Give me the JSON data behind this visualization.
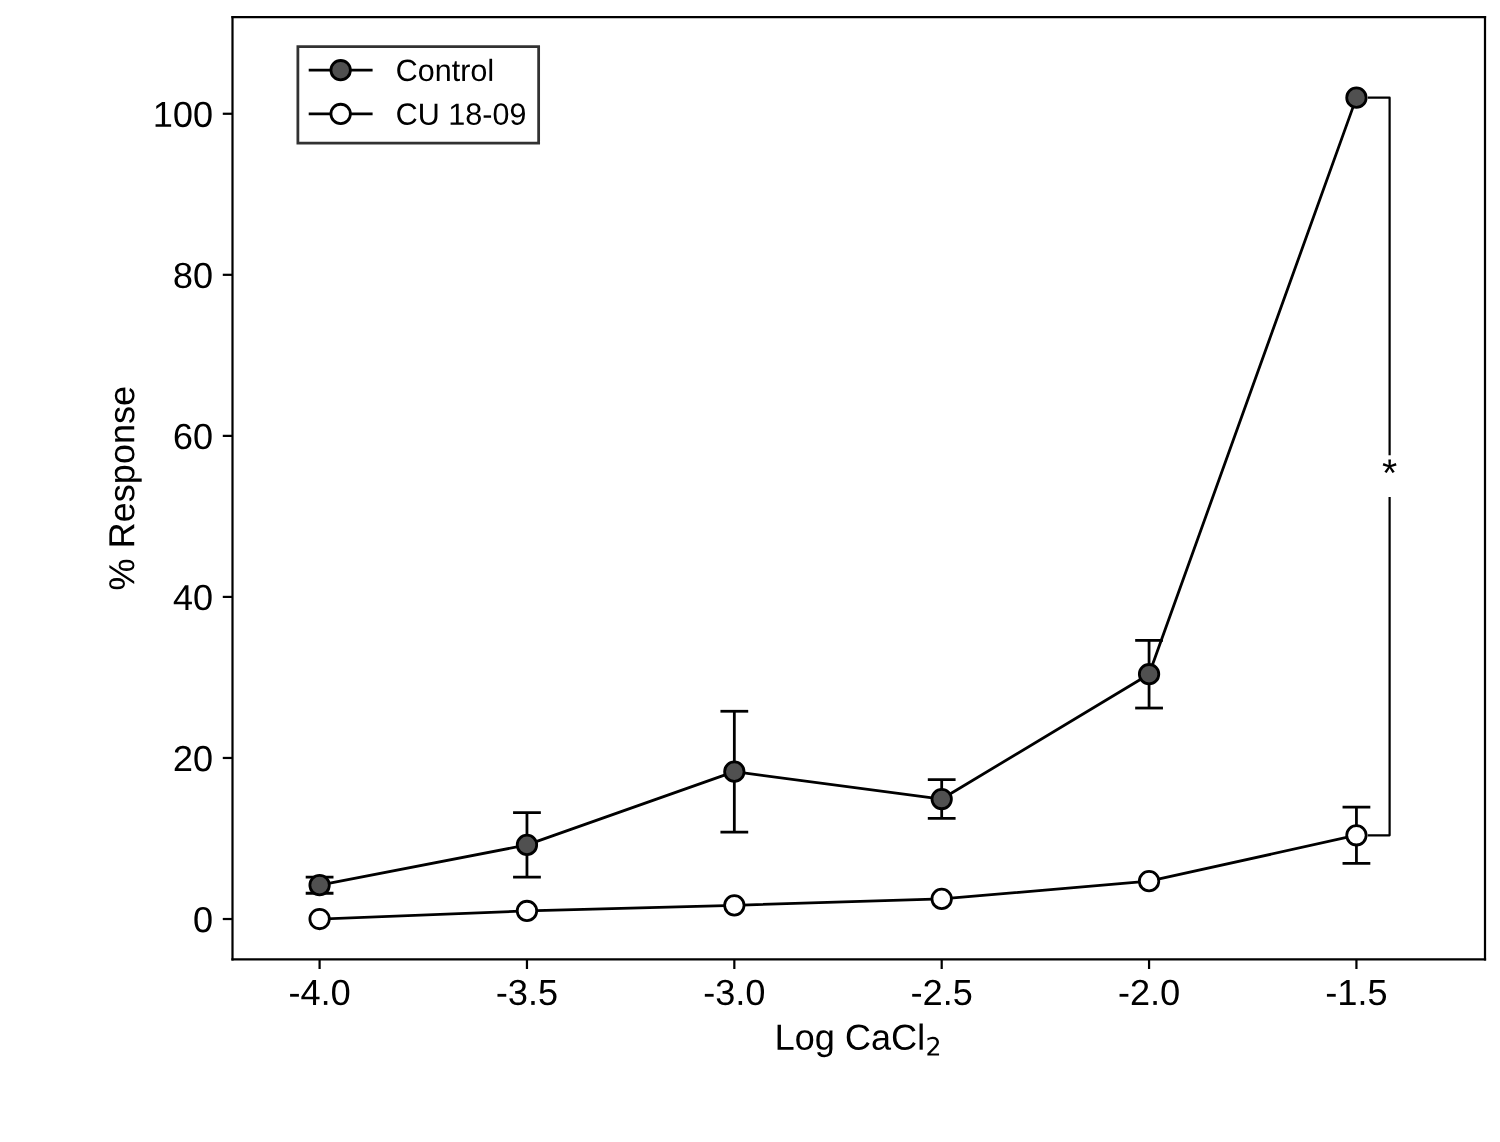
{
  "chart_data": {
    "type": "line",
    "xlabel": "Log CaCl$_{2}$",
    "ylabel": "% Response",
    "x": [
      -4.0,
      -3.5,
      -3.0,
      -2.5,
      -2.0,
      -1.5
    ],
    "series": [
      {
        "name": "Control",
        "color": "#505050",
        "values": [
          4.2,
          9.2,
          18.3,
          14.9,
          30.4,
          102
        ],
        "errors": [
          1,
          4,
          7.5,
          2.4,
          4.2,
          null
        ]
      },
      {
        "name": "CU 18-09",
        "color": "#ffffff",
        "values": [
          0,
          1,
          1.7,
          2.5,
          4.7,
          10.4
        ],
        "errors": [
          null,
          null,
          null,
          null,
          null,
          3.5
        ]
      }
    ],
    "xlim": [
      -4.21,
      -1.19
    ],
    "ylim": [
      -5,
      112
    ],
    "xticks": [
      {
        "value": -4.0,
        "label": "-4.0"
      },
      {
        "value": -3.5,
        "label": "-3.5"
      },
      {
        "value": -3.0,
        "label": "-3.0"
      },
      {
        "value": -2.5,
        "label": "-2.5"
      },
      {
        "value": -2.0,
        "label": "-2.0"
      },
      {
        "value": -1.5,
        "label": "-1.5"
      }
    ],
    "yticks": [
      0,
      20,
      40,
      60,
      80,
      100
    ],
    "annotations": [
      {
        "text": "*",
        "x": -1.42,
        "y": 55
      }
    ],
    "legend": "top left",
    "marker": "circle",
    "line_style": "solid",
    "grid": false
  }
}
